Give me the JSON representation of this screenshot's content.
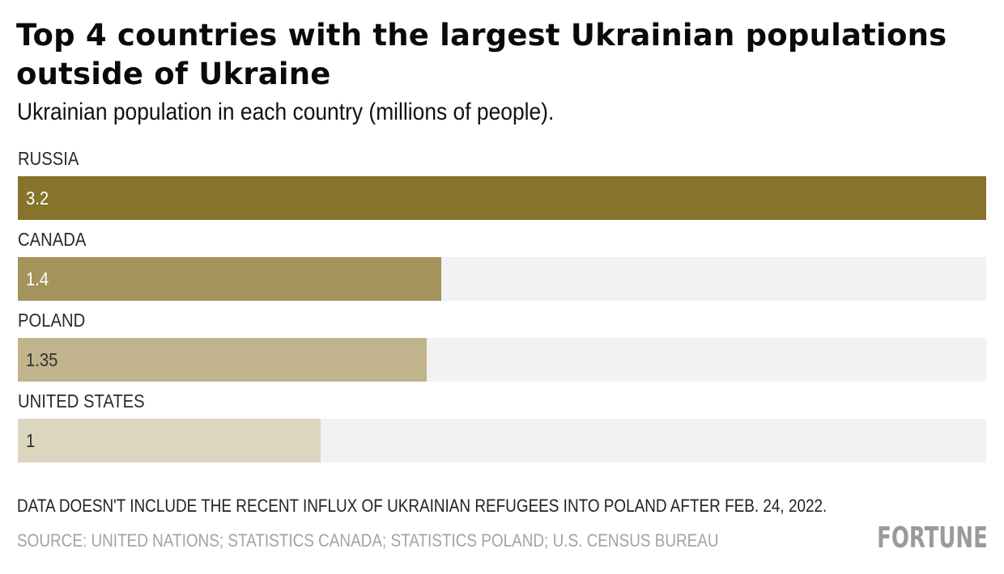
{
  "chart_data": {
    "type": "bar",
    "orientation": "horizontal",
    "title": "Top 4 countries with the largest Ukrainian populations outside of Ukraine",
    "subtitle": "Ukrainian population in each country (millions of people).",
    "categories": [
      "RUSSIA",
      "CANADA",
      "POLAND",
      "UNITED STATES"
    ],
    "values": [
      3.2,
      1.4,
      1.35,
      1
    ],
    "value_labels": [
      "3.2",
      "1.4",
      "1.35",
      "1"
    ],
    "colors": [
      "#86732c",
      "#a4945c",
      "#c1b38c",
      "#dcd5c0"
    ],
    "label_colors": [
      "#ffffff",
      "#ffffff",
      "#333333",
      "#333333"
    ],
    "track_color": "#f2f2f2",
    "xlim": [
      0,
      3.2
    ],
    "xlabel": "",
    "ylabel": "",
    "grid": false,
    "note": "DATA DOESN'T INCLUDE THE RECENT INFLUX OF UKRAINIAN REFUGEES INTO POLAND AFTER FEB. 24, 2022.",
    "source": "SOURCE: UNITED NATIONS; STATISTICS CANADA; STATISTICS POLAND; U.S. CENSUS BUREAU"
  },
  "branding": {
    "logo": "FORTUNE"
  }
}
